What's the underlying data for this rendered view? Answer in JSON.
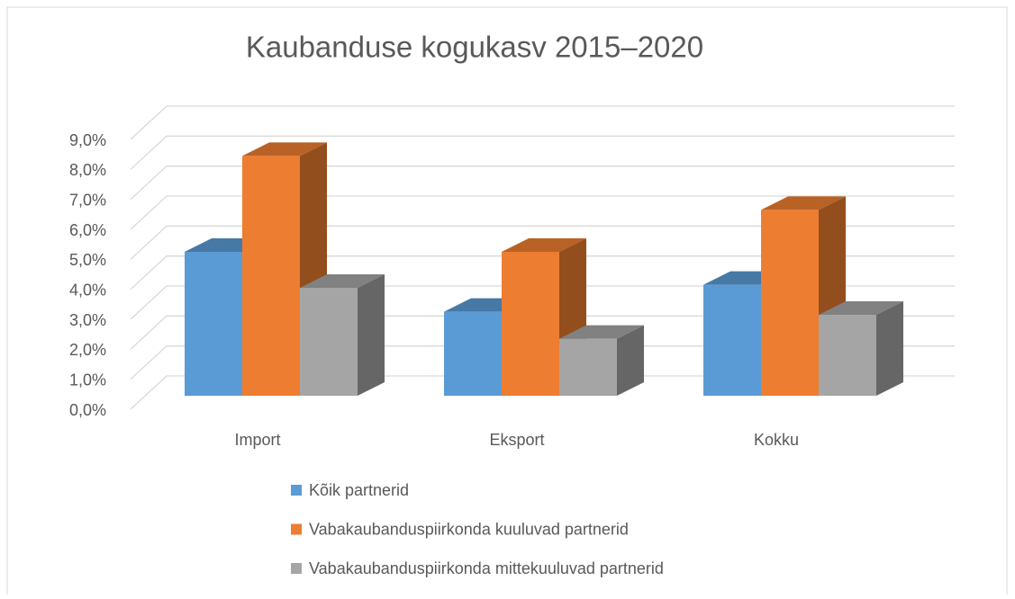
{
  "chart_data": {
    "type": "bar3d",
    "title": "Kaubanduse kogukasv 2015–2020",
    "categories": [
      "Import",
      "Eksport",
      "Kokku"
    ],
    "series": [
      {
        "name": "Kõik partnerid",
        "color": "#5b9bd5",
        "values": [
          4.8,
          2.8,
          3.7
        ]
      },
      {
        "name": "Vabakaubanduspiirkonda kuuluvad partnerid",
        "color": "#ed7d31",
        "values": [
          8.0,
          4.8,
          6.2
        ]
      },
      {
        "name": "Vabakaubanduspiirkonda mittekuuluvad partnerid",
        "color": "#a5a5a5",
        "values": [
          3.6,
          1.9,
          2.7
        ]
      }
    ],
    "ylim": [
      0,
      9
    ],
    "yticks": [
      {
        "value": 0,
        "label": "0,0%"
      },
      {
        "value": 1,
        "label": "1,0%"
      },
      {
        "value": 2,
        "label": "2,0%"
      },
      {
        "value": 3,
        "label": "3,0%"
      },
      {
        "value": 4,
        "label": "4,0%"
      },
      {
        "value": 5,
        "label": "5,0%"
      },
      {
        "value": 6,
        "label": "6,0%"
      },
      {
        "value": 7,
        "label": "7,0%"
      },
      {
        "value": 8,
        "label": "8,0%"
      },
      {
        "value": 9,
        "label": "9,0%"
      }
    ],
    "grid": true,
    "legend": "bottom"
  }
}
